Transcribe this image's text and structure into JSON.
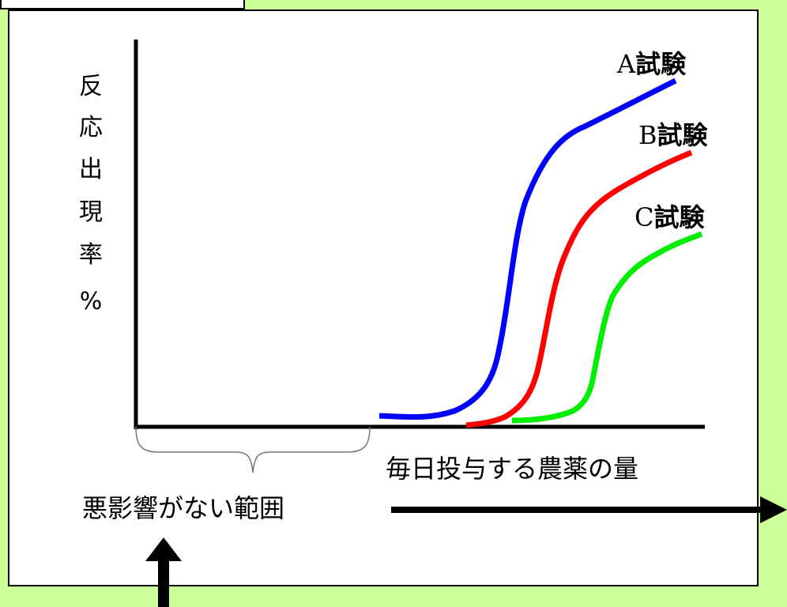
{
  "y_axis_label_chars": [
    "反",
    "応",
    "出",
    "現",
    "率",
    "%"
  ],
  "x_axis_label": "毎日投与する農薬の量",
  "safe_range_label": "悪影響がない範囲",
  "curve_labels": {
    "a_latin": "A",
    "a_jp": "試験",
    "b_latin": "B",
    "b_jp": "試験",
    "c_latin": "C",
    "c_jp": "試験"
  },
  "colors": {
    "background": "#ccff99",
    "curve_a": "#0000ff",
    "curve_b": "#ff0000",
    "curve_c": "#00ee00"
  }
}
